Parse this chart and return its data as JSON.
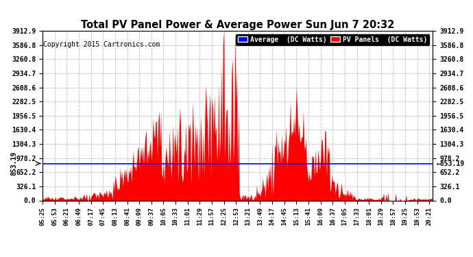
{
  "title": "Total PV Panel Power & Average Power Sun Jun 7 20:32",
  "copyright": "Copyright 2015 Cartronics.com",
  "legend_avg_label": "Average  (DC Watts)",
  "legend_pv_label": "PV Panels  (DC Watts)",
  "avg_value": 853.19,
  "y_max": 3912.9,
  "y_ticks": [
    0.0,
    326.1,
    652.2,
    978.2,
    1304.3,
    1630.4,
    1956.5,
    2282.5,
    2608.6,
    2934.7,
    3260.8,
    3586.8,
    3912.9
  ],
  "bg_color": "#ffffff",
  "fill_color": "#ff0000",
  "avg_line_color": "#0000ff",
  "title_color": "#000000",
  "grid_color": "#aaaaaa",
  "legend_avg_bg": "#0000ff",
  "legend_pv_bg": "#ff0000"
}
